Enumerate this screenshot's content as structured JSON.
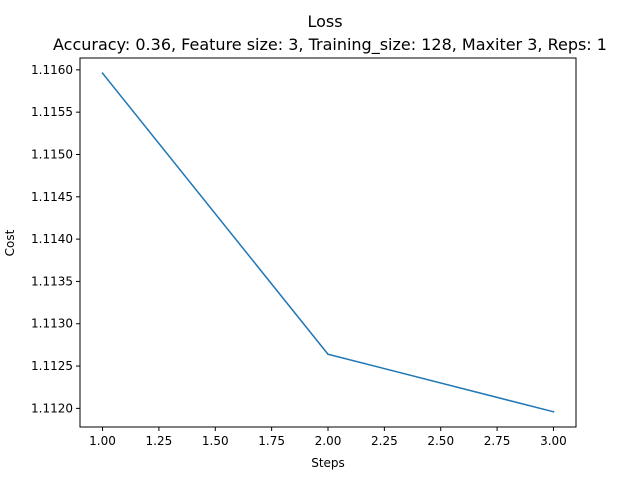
{
  "chart_data": {
    "type": "line",
    "title": "Loss",
    "subtitle": "Accuracy: 0.36, Feature size: 3, Training_size: 128, Maxiter 3, Reps: 1",
    "xlabel": "Steps",
    "ylabel": "Cost",
    "x": [
      1.0,
      2.0,
      3.0
    ],
    "series": [
      {
        "values": [
          1.11596,
          1.11264,
          1.11196
        ],
        "color": "#1f77b4"
      }
    ],
    "xlim": [
      0.9,
      3.1
    ],
    "ylim": [
      1.11178,
      1.11614
    ],
    "xticks": [
      1.0,
      1.25,
      1.5,
      1.75,
      2.0,
      2.25,
      2.5,
      2.75,
      3.0
    ],
    "xtick_labels": [
      "1.00",
      "1.25",
      "1.50",
      "1.75",
      "2.00",
      "2.25",
      "2.50",
      "2.75",
      "3.00"
    ],
    "yticks": [
      1.112,
      1.1125,
      1.113,
      1.1135,
      1.114,
      1.1145,
      1.115,
      1.1155,
      1.116
    ],
    "ytick_labels": [
      "1.1120",
      "1.1125",
      "1.1130",
      "1.1135",
      "1.1140",
      "1.1145",
      "1.1150",
      "1.1155",
      "1.1160"
    ],
    "grid": false,
    "legend": false
  }
}
